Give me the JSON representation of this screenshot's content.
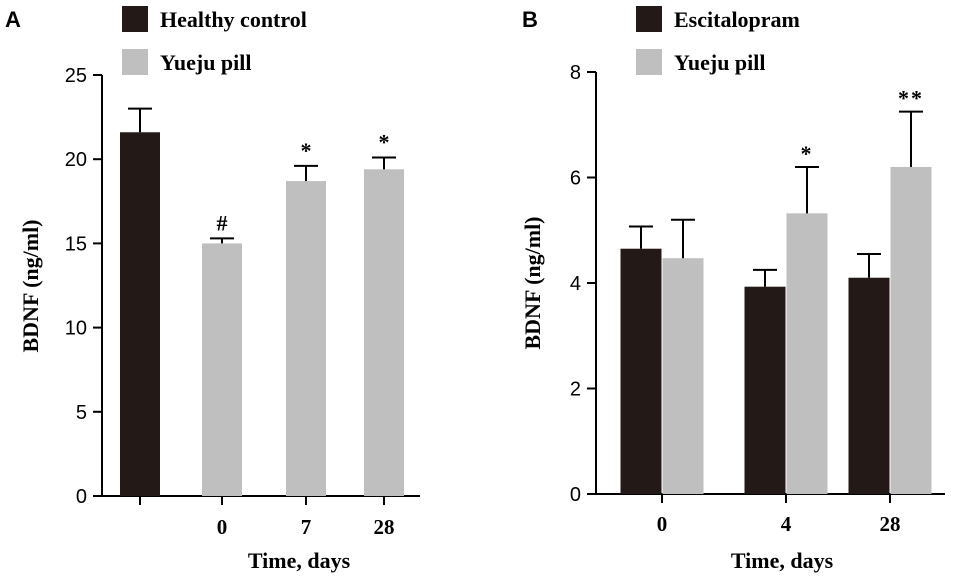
{
  "chart_data": [
    {
      "type": "bar",
      "panel_label": "A",
      "ylabel": "BDNF (ng/ml)",
      "xlabel": "Time, days",
      "ylim": [
        0,
        25
      ],
      "yticks": [
        0,
        5,
        10,
        15,
        20,
        25
      ],
      "legend": [
        {
          "name": "Healthy control",
          "color": "#231a18"
        },
        {
          "name": "Yueju pill",
          "color": "#bfbfbf"
        }
      ],
      "categories": [
        "",
        "0",
        "7",
        "28"
      ],
      "bars": [
        {
          "category": "",
          "series": "Healthy control",
          "value": 21.6,
          "error": 1.4,
          "annotation": ""
        },
        {
          "category": "0",
          "series": "Yueju pill",
          "value": 15.0,
          "error": 0.3,
          "annotation": "#"
        },
        {
          "category": "7",
          "series": "Yueju pill",
          "value": 18.7,
          "error": 0.9,
          "annotation": "*"
        },
        {
          "category": "28",
          "series": "Yueju pill",
          "value": 19.4,
          "error": 0.7,
          "annotation": "*"
        }
      ]
    },
    {
      "type": "bar",
      "panel_label": "B",
      "ylabel": "BDNF (ng/ml)",
      "xlabel": "Time, days",
      "ylim": [
        0,
        8
      ],
      "yticks": [
        0,
        2,
        4,
        6,
        8
      ],
      "legend": [
        {
          "name": "Escitalopram",
          "color": "#231a18"
        },
        {
          "name": "Yueju pill",
          "color": "#bfbfbf"
        }
      ],
      "categories": [
        "0",
        "4",
        "28"
      ],
      "series": [
        {
          "name": "Escitalopram",
          "values": [
            4.65,
            3.93,
            4.1
          ],
          "errors": [
            0.42,
            0.32,
            0.45
          ],
          "annotations": [
            "",
            "",
            ""
          ]
        },
        {
          "name": "Yueju pill",
          "values": [
            4.47,
            5.32,
            6.2
          ],
          "errors": [
            0.73,
            0.88,
            1.05
          ],
          "annotations": [
            "",
            "*",
            "**"
          ]
        }
      ]
    }
  ]
}
